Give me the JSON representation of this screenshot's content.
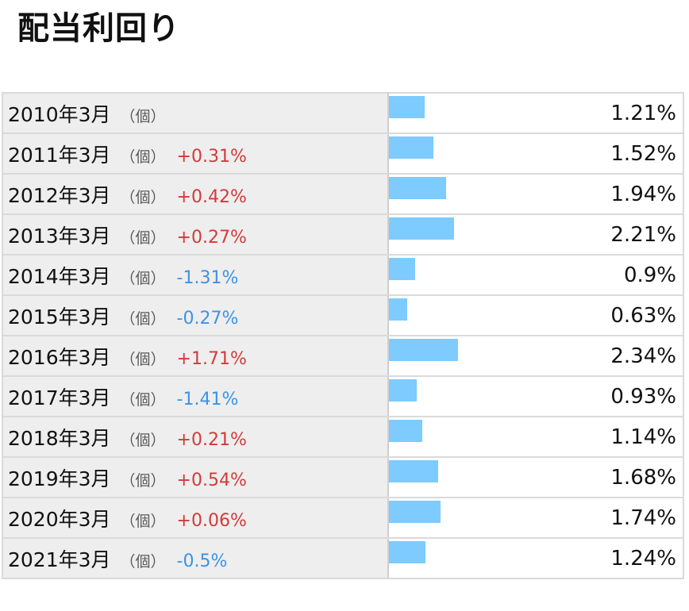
{
  "title": "配当利回り",
  "unit_label": "（個）",
  "colors": {
    "bar": "#7dcbff",
    "increase": "#d13b3b",
    "decrease": "#3c93e6",
    "label_background": "#eeeeee"
  },
  "rows": [
    {
      "period": "2010年3月",
      "change": "",
      "value": "1.21%"
    },
    {
      "period": "2011年3月",
      "change": "+0.31%",
      "value": "1.52%"
    },
    {
      "period": "2012年3月",
      "change": "+0.42%",
      "value": "1.94%"
    },
    {
      "period": "2013年3月",
      "change": "+0.27%",
      "value": "2.21%"
    },
    {
      "period": "2014年3月",
      "change": "-1.31%",
      "value": "0.9%"
    },
    {
      "period": "2015年3月",
      "change": "-0.27%",
      "value": "0.63%"
    },
    {
      "period": "2016年3月",
      "change": "+1.71%",
      "value": "2.34%"
    },
    {
      "period": "2017年3月",
      "change": "-1.41%",
      "value": "0.93%"
    },
    {
      "period": "2018年3月",
      "change": "+0.21%",
      "value": "1.14%"
    },
    {
      "period": "2019年3月",
      "change": "+0.54%",
      "value": "1.68%"
    },
    {
      "period": "2020年3月",
      "change": "+0.06%",
      "value": "1.74%"
    },
    {
      "period": "2021年3月",
      "change": "-0.5%",
      "value": "1.24%"
    }
  ],
  "chart_data": {
    "type": "bar",
    "orientation": "horizontal",
    "title": "配当利回り",
    "categories": [
      "2010年3月",
      "2011年3月",
      "2012年3月",
      "2013年3月",
      "2014年3月",
      "2015年3月",
      "2016年3月",
      "2017年3月",
      "2018年3月",
      "2019年3月",
      "2020年3月",
      "2021年3月"
    ],
    "values": [
      1.21,
      1.52,
      1.94,
      2.21,
      0.9,
      0.63,
      2.34,
      0.93,
      1.14,
      1.68,
      1.74,
      1.24
    ],
    "changes": [
      null,
      0.31,
      0.42,
      0.27,
      -1.31,
      -0.27,
      1.71,
      -1.41,
      0.21,
      0.54,
      0.06,
      -0.5
    ],
    "unit": "%",
    "xlim": [
      0,
      3.5
    ],
    "grid": false,
    "legend": "none"
  }
}
